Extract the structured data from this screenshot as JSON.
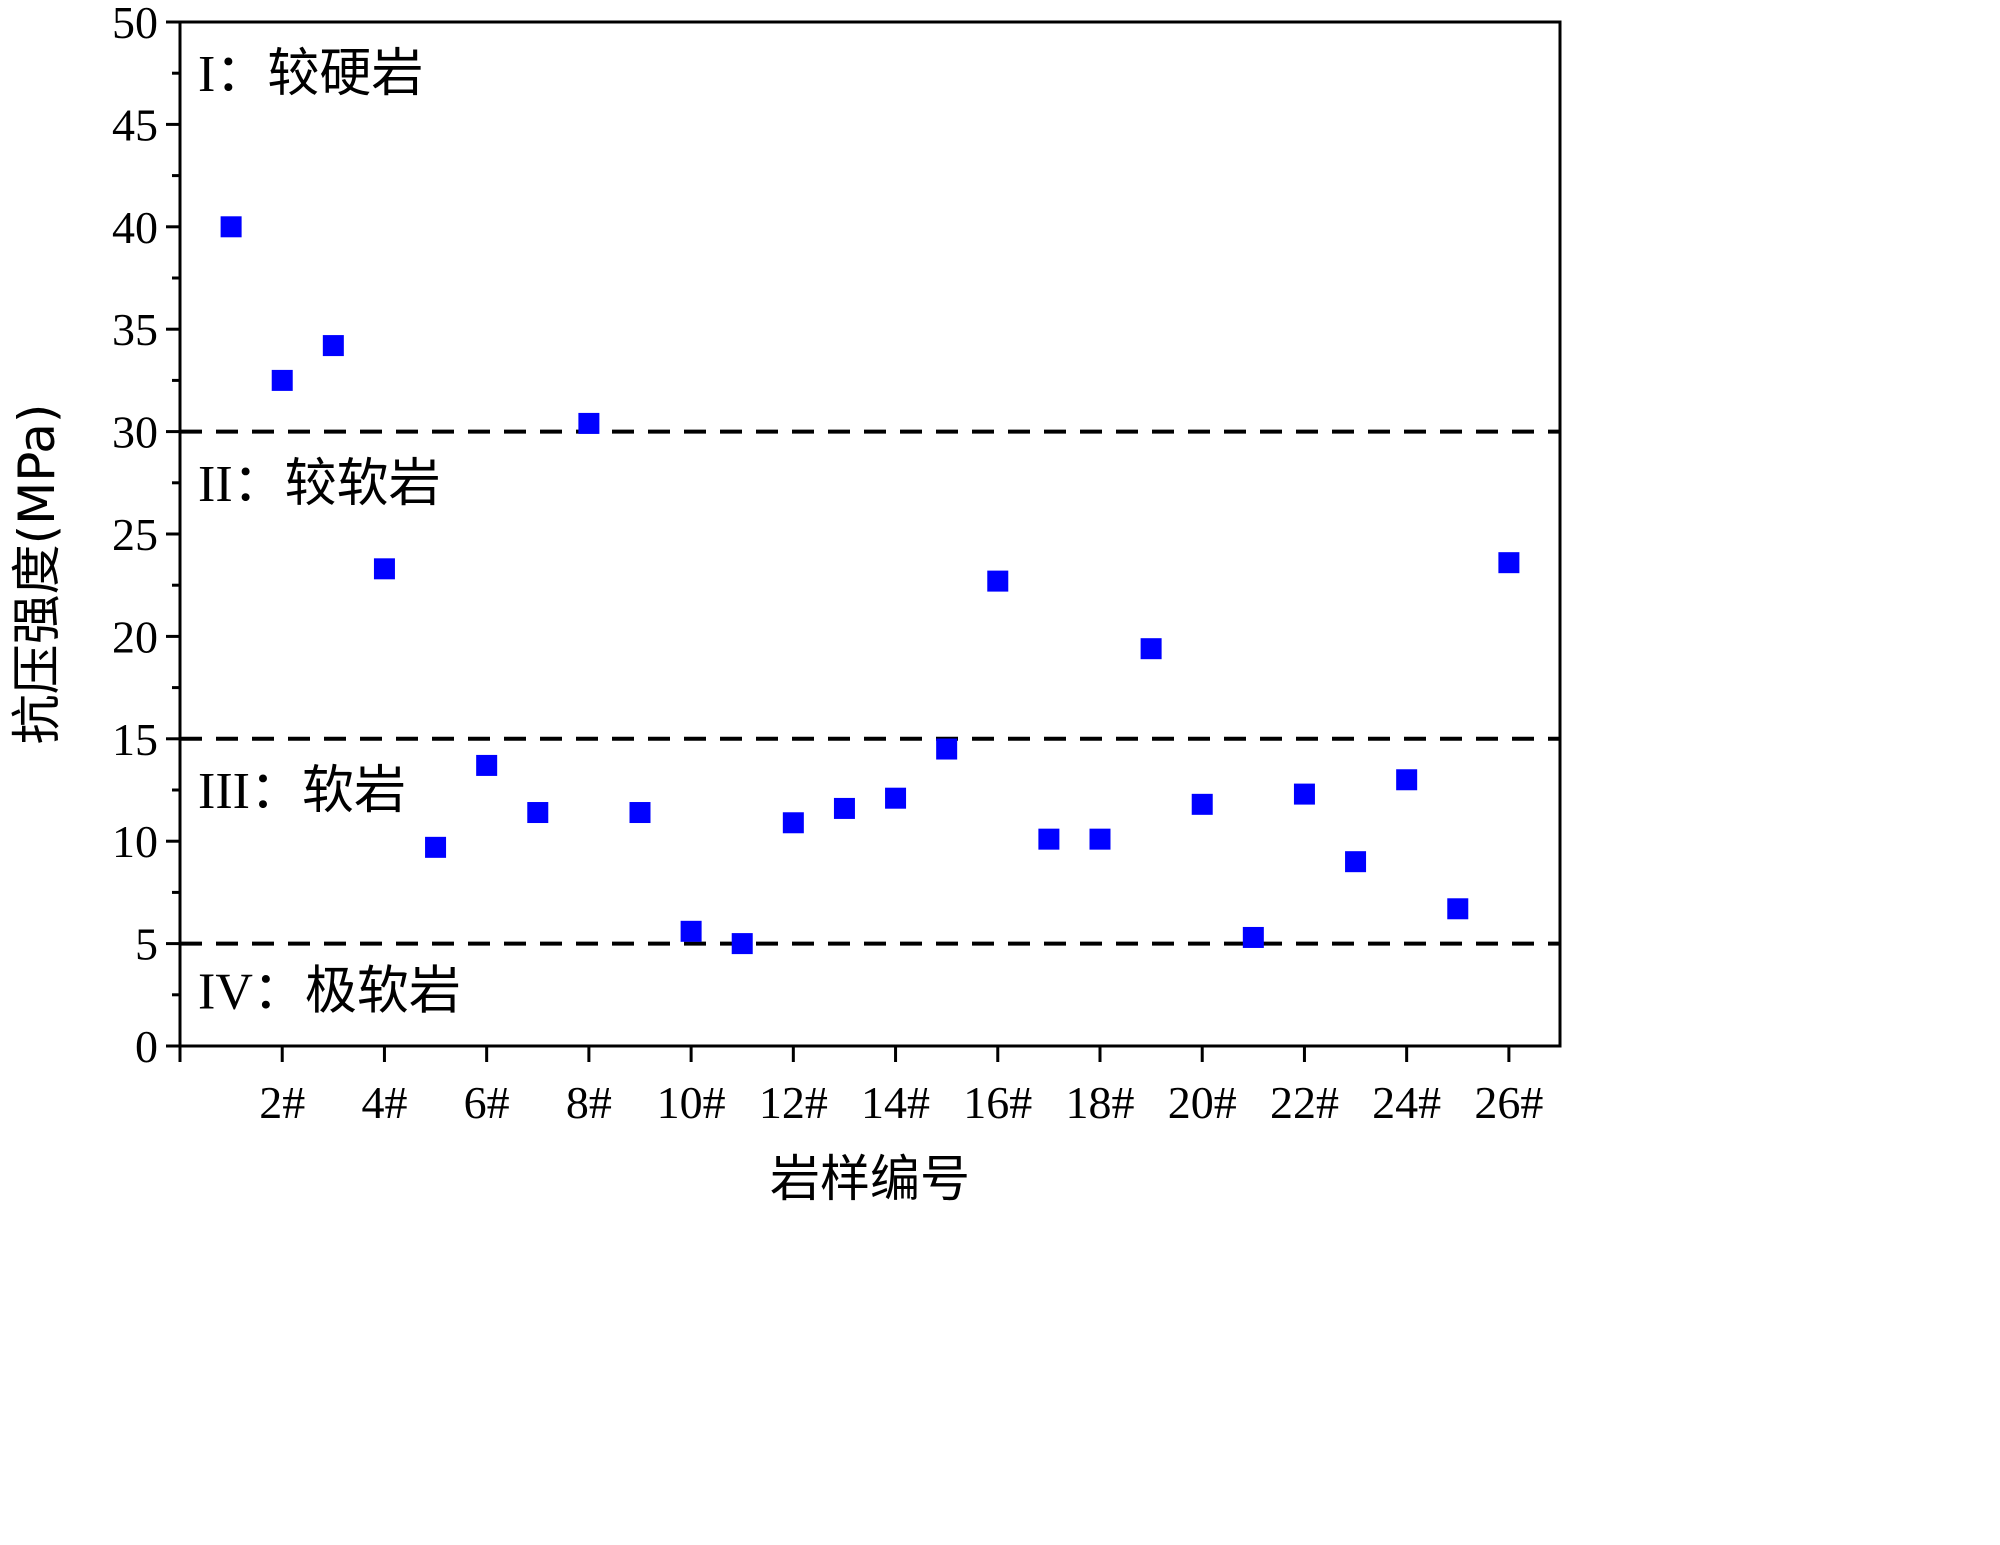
{
  "chart_data": {
    "type": "scatter",
    "xlabel": "岩样编号",
    "ylabel": "抗压强度(MPa)",
    "xlim": [
      0,
      27
    ],
    "ylim": [
      0,
      50
    ],
    "y_ticks": [
      "0",
      "5",
      "10",
      "15",
      "20",
      "25",
      "30",
      "35",
      "40",
      "45",
      "50"
    ],
    "x_tick_labels": [
      {
        "x": 2,
        "label": "2#"
      },
      {
        "x": 4,
        "label": "4#"
      },
      {
        "x": 6,
        "label": "6#"
      },
      {
        "x": 8,
        "label": "8#"
      },
      {
        "x": 10,
        "label": "10#"
      },
      {
        "x": 12,
        "label": "12#"
      },
      {
        "x": 14,
        "label": "14#"
      },
      {
        "x": 16,
        "label": "16#"
      },
      {
        "x": 18,
        "label": "18#"
      },
      {
        "x": 20,
        "label": "20#"
      },
      {
        "x": 22,
        "label": "22#"
      },
      {
        "x": 24,
        "label": "24#"
      },
      {
        "x": 26,
        "label": "26#"
      }
    ],
    "threshold_lines": [
      30,
      15,
      5
    ],
    "zones": [
      {
        "label": "I：较硬岩",
        "y": 47.5
      },
      {
        "label": "II：较软岩",
        "y": 27.5
      },
      {
        "label": "III：软岩",
        "y": 12.5
      },
      {
        "label": "IV：极软岩",
        "y": 2.7
      }
    ],
    "marker_color": "#0000ff",
    "x": [
      1,
      2,
      3,
      4,
      5,
      6,
      7,
      8,
      9,
      10,
      11,
      12,
      13,
      14,
      15,
      16,
      17,
      18,
      19,
      20,
      21,
      22,
      23,
      24,
      25,
      26
    ],
    "y": [
      40.0,
      32.5,
      34.2,
      23.3,
      9.7,
      13.7,
      11.4,
      30.4,
      11.4,
      5.6,
      5.0,
      10.9,
      11.6,
      12.1,
      14.5,
      22.7,
      10.1,
      10.1,
      19.4,
      11.8,
      5.3,
      12.3,
      9.0,
      13.0,
      6.7,
      23.6
    ]
  }
}
